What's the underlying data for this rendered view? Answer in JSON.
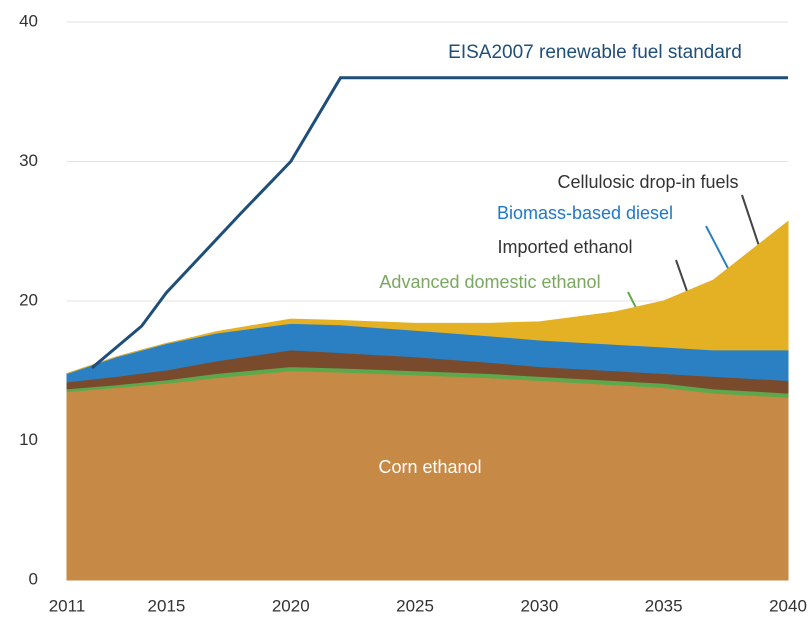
{
  "chart_data": {
    "type": "stacked-area",
    "x": [
      2011,
      2013,
      2015,
      2017,
      2020,
      2022,
      2025,
      2028,
      2030,
      2033,
      2035,
      2037,
      2040
    ],
    "series": [
      {
        "name": "Corn ethanol",
        "color": "#c68a46",
        "label_color": "#ffffff",
        "values": [
          13.5,
          13.8,
          14.1,
          14.5,
          15.0,
          14.9,
          14.7,
          14.5,
          14.3,
          14.0,
          13.8,
          13.4,
          13.1
        ]
      },
      {
        "name": "Advanced domestic ethanol",
        "color": "#5ea84c",
        "label_color": "#7aa860",
        "values": [
          0.2,
          0.2,
          0.25,
          0.3,
          0.3,
          0.3,
          0.3,
          0.3,
          0.3,
          0.3,
          0.3,
          0.3,
          0.3
        ]
      },
      {
        "name": "Imported ethanol",
        "color": "#7a4a2c",
        "label_color": "#333333",
        "values": [
          0.5,
          0.6,
          0.7,
          0.9,
          1.2,
          1.1,
          1.0,
          0.8,
          0.7,
          0.7,
          0.7,
          0.9,
          0.9
        ]
      },
      {
        "name": "Biomass-based diesel",
        "color": "#2a80c2",
        "label_color": "#1f78c8",
        "values": [
          0.6,
          1.4,
          1.9,
          2.0,
          1.9,
          2.0,
          1.9,
          1.9,
          1.9,
          1.9,
          1.9,
          1.9,
          2.2
        ]
      },
      {
        "name": "Cellulosic drop-in fuels",
        "color": "#e4b024",
        "label_color": "#333333",
        "values": [
          0,
          0,
          0,
          0.1,
          0.3,
          0.3,
          0.5,
          0.9,
          1.3,
          2.3,
          3.3,
          5.0,
          9.2
        ]
      }
    ],
    "line": {
      "name": "EISA2007 renewable  fuel standard",
      "color": "#1f4e79",
      "x": [
        2012,
        2014,
        2015,
        2018,
        2020,
        2022,
        2040
      ],
      "values": [
        15.2,
        18.2,
        20.6,
        26.3,
        30,
        36,
        36
      ]
    },
    "xlim": [
      2011,
      2040
    ],
    "xticks": [
      2011,
      2015,
      2020,
      2025,
      2030,
      2035,
      2040
    ],
    "ylim": [
      0,
      40
    ],
    "yticks": [
      0,
      10,
      20,
      30,
      40
    ],
    "grid": true
  }
}
